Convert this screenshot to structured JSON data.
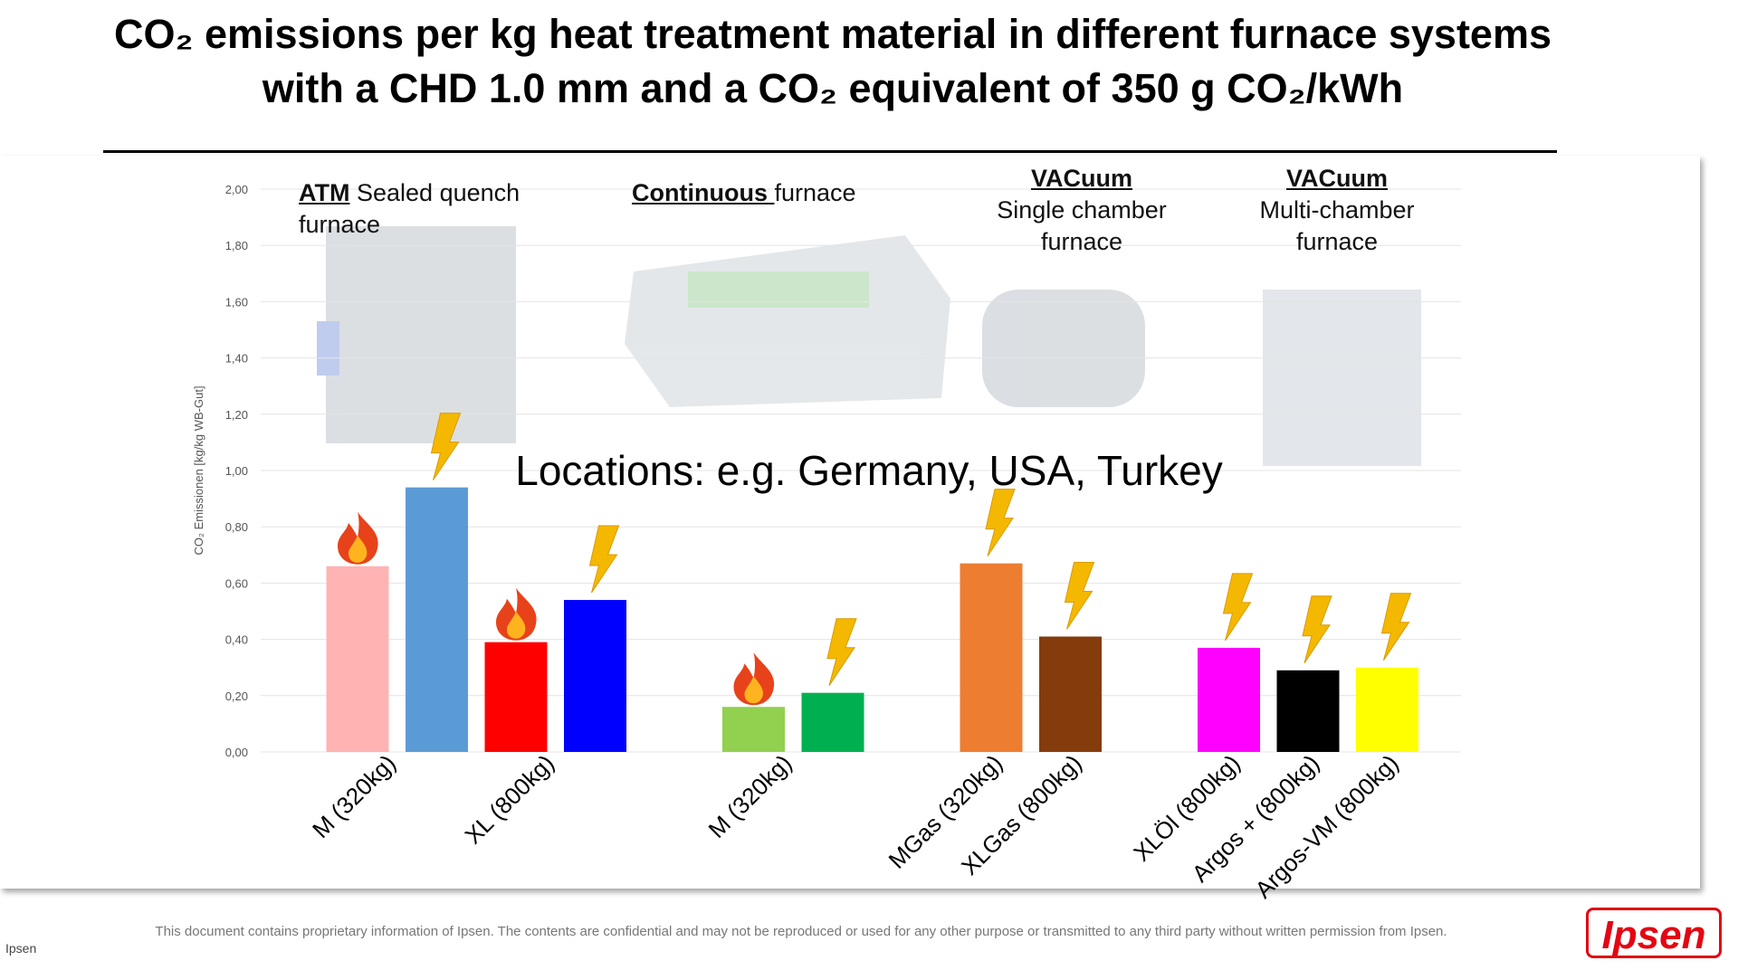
{
  "title": [
    "CO₂ emissions per kg heat treatment material in different furnace systems",
    "with a CHD 1.0 mm and a CO₂ equivalent of 350 g CO₂/kWh"
  ],
  "chart_data": {
    "type": "bar",
    "ylabel": "CO₂ Emissionen [kg/kg WB-Gut]",
    "categories": [
      "M (320kg)",
      null,
      "XL (800kg)",
      null,
      "M (320kg)",
      null,
      "MGas (320kg)",
      "XLGas (800kg)",
      "XLÖl (800kg)",
      "Argos + (800kg)",
      "Argos-VM (800kg)"
    ],
    "values": [
      0.66,
      0.94,
      0.39,
      0.54,
      0.16,
      0.21,
      0.67,
      0.41,
      0.37,
      0.29,
      0.3
    ],
    "colors": [
      "#ffb3b3",
      "#5b9bd5",
      "#ff0000",
      "#0000ff",
      "#92d050",
      "#00b050",
      "#ed7d31",
      "#843c0c",
      "#ff00ff",
      "#000000",
      "#ffff00"
    ],
    "icons": [
      "flame",
      "bolt",
      "flame",
      "bolt",
      "flame",
      "bolt",
      "bolt",
      "bolt",
      "bolt",
      "bolt",
      "bolt"
    ],
    "ylim": [
      0,
      2
    ],
    "yticks": [
      {
        "value": 0,
        "label": "0,00"
      },
      {
        "value": 0.2,
        "label": "0,20"
      },
      {
        "value": 0.4,
        "label": "0,40"
      },
      {
        "value": 0.6,
        "label": "0,60"
      },
      {
        "value": 0.8,
        "label": "0,80"
      },
      {
        "value": 1.0,
        "label": "1,00"
      },
      {
        "value": 1.2,
        "label": "1,20"
      },
      {
        "value": 1.4,
        "label": "1,40"
      },
      {
        "value": 1.6,
        "label": "1,60"
      },
      {
        "value": 1.8,
        "label": "1,80"
      },
      {
        "value": 2.0,
        "label": "2,00"
      }
    ],
    "grid": true,
    "annotation": "Locations: e.g. Germany, USA, Turkey"
  },
  "furnaces": [
    {
      "bold": "ATM",
      "text": "Sealed quench furnace"
    },
    {
      "bold": "Continuous ",
      "text": "furnace"
    },
    {
      "bold": "VACuum",
      "text": "Single chamber furnace"
    },
    {
      "bold": "VACuum",
      "text": "Multi-chamber furnace"
    }
  ],
  "footer": {
    "left": "Ipsen",
    "notice": "This document contains proprietary information of Ipsen. The contents are confidential and may not be reproduced or used for any other purpose or transmitted to any third party without written permission from Ipsen.",
    "logo": "Ipsen"
  }
}
